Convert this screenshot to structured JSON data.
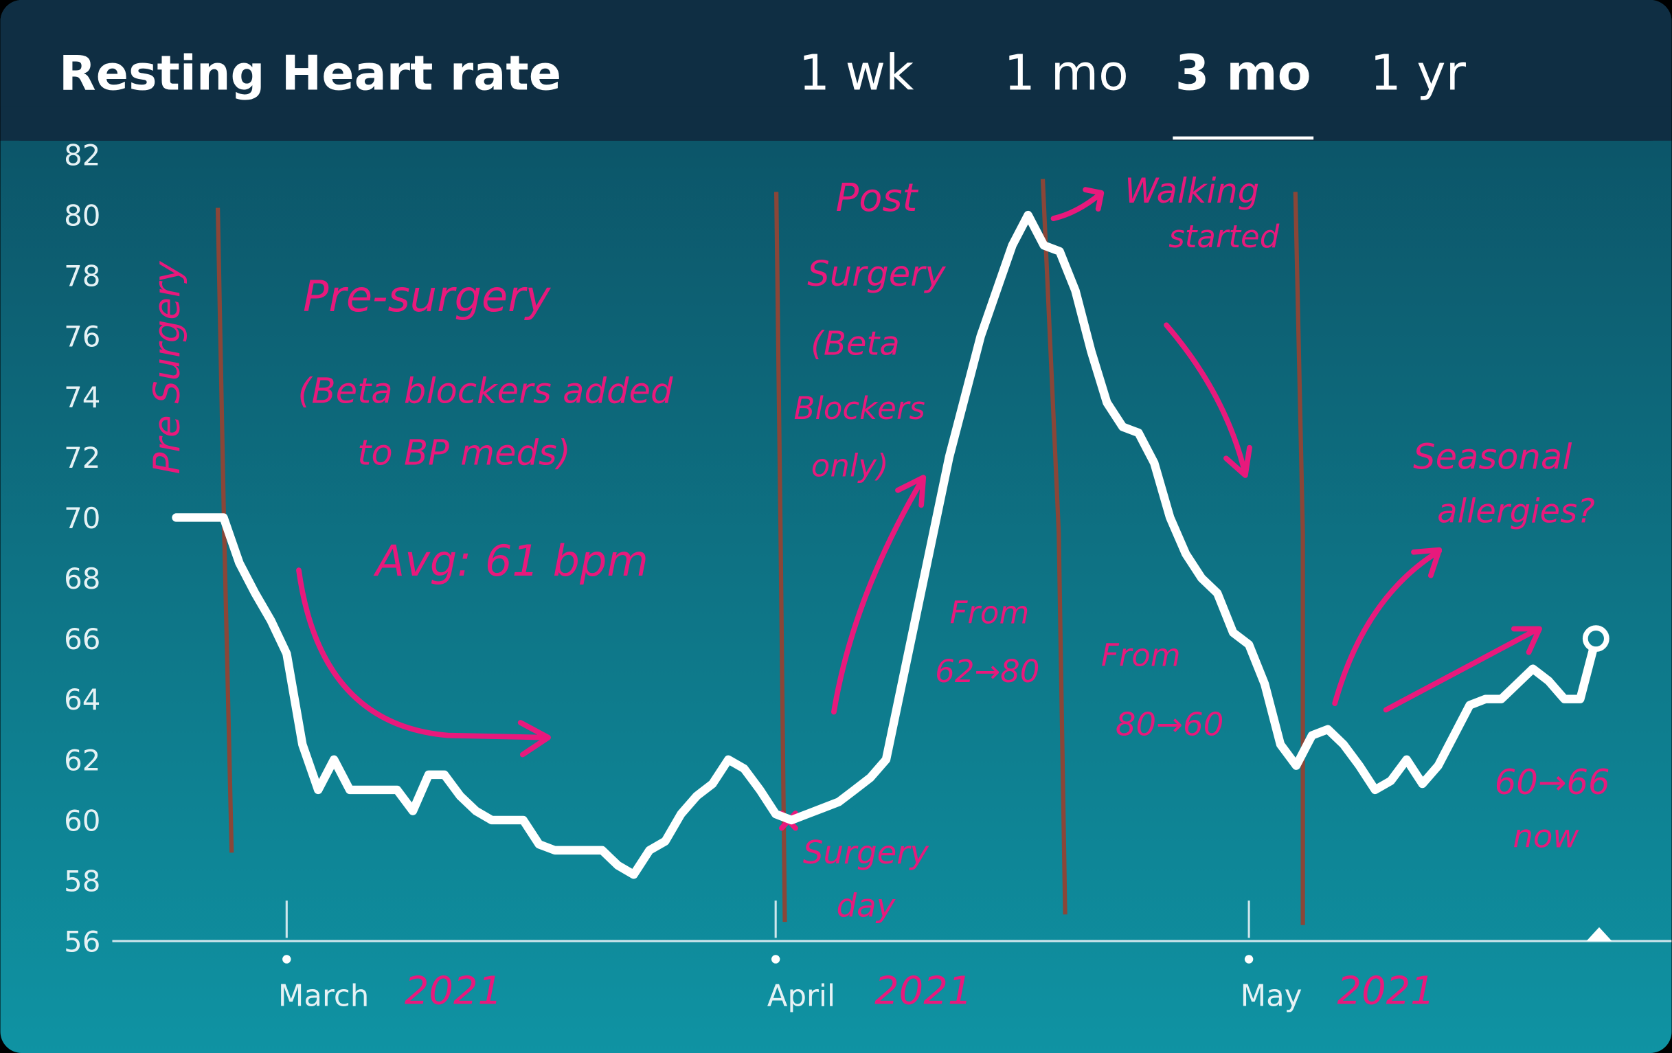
{
  "header": {
    "title": "Resting Heart rate",
    "tabs": [
      "1 wk",
      "1 mo",
      "3 mo",
      "1 yr"
    ],
    "active_tab": 2
  },
  "chart_data": {
    "type": "line",
    "categories": [
      null,
      null,
      null,
      null,
      null,
      null,
      null,
      "March",
      null,
      null,
      null,
      null,
      null,
      null,
      null,
      null,
      null,
      null,
      null,
      null,
      null,
      null,
      null,
      null,
      null,
      null,
      null,
      null,
      null,
      null,
      null,
      null,
      null,
      null,
      null,
      null,
      null,
      null,
      "April",
      null,
      null,
      null,
      null,
      null,
      null,
      null,
      null,
      null,
      null,
      null,
      null,
      null,
      null,
      null,
      null,
      null,
      null,
      null,
      null,
      null,
      null,
      null,
      null,
      null,
      null,
      null,
      null,
      null,
      "May",
      null,
      null,
      null,
      null,
      null,
      null,
      null,
      null,
      null,
      null,
      null,
      null,
      null,
      null,
      null,
      null,
      null,
      null,
      null,
      null,
      null,
      null
    ],
    "values": [
      70,
      70,
      70,
      70,
      68.5,
      67.5,
      66.6,
      65.5,
      62.5,
      61,
      62,
      61,
      61,
      61,
      61,
      60.3,
      61.5,
      61.5,
      60.8,
      60.3,
      60,
      60,
      60,
      59.2,
      59,
      59,
      59,
      59,
      58.5,
      58.2,
      59,
      59.3,
      60.2,
      60.8,
      61.2,
      62,
      61.7,
      61,
      60.2,
      60,
      60.2,
      60.4,
      60.6,
      61,
      61.4,
      62,
      64.5,
      67,
      69.5,
      72,
      74,
      76,
      77.5,
      79,
      80,
      79,
      78.8,
      77.5,
      75.5,
      73.8,
      73,
      72.8,
      71.8,
      70,
      68.8,
      68,
      67.5,
      66.2,
      65.8,
      64.5,
      62.5,
      61.8,
      62.8,
      63,
      62.5,
      61.8,
      61,
      61.3,
      62,
      61.2,
      61.8,
      62.8,
      63.8,
      64,
      64,
      64.5,
      65,
      64.6,
      64,
      64,
      66
    ],
    "color": "#ffffff",
    "ylim": [
      56,
      82
    ],
    "yticks": [
      56,
      58,
      60,
      62,
      64,
      66,
      68,
      70,
      72,
      74,
      76,
      78,
      80,
      82
    ],
    "annotations": [
      "Pre Surgery",
      "Pre-surgery",
      "(Beta blockers added",
      "to BP meds)",
      "Avg: 61 bpm",
      "Post",
      "Surgery",
      "(Beta",
      "Blockers",
      "only)",
      "Surgery",
      "day",
      "From",
      "62→80",
      "Walking",
      "started",
      "From",
      "80→60",
      "Seasonal",
      "allergies?",
      "60→66",
      "now",
      "2021",
      "2021",
      "2021"
    ]
  }
}
